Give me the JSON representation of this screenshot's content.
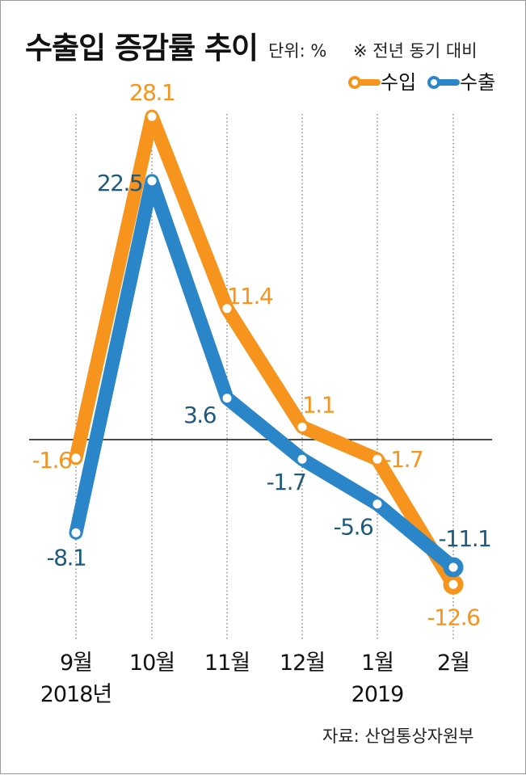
{
  "header": {
    "title": "수출입 증감률 추이",
    "unit": "단위: %",
    "note": "※ 전년 동기 대비"
  },
  "footer": {
    "source": "자료: 산업통상자원부"
  },
  "colors": {
    "import": "#f7941d",
    "export": "#2b86c9",
    "import_label": "#f7941d",
    "export_label": "#1f5a7e"
  },
  "chart_data": {
    "type": "line",
    "title": "수출입 증감률 추이",
    "categories": [
      "9월",
      "10월",
      "11월",
      "12월",
      "1월",
      "2월"
    ],
    "year_labels": [
      "2018년",
      "",
      "",
      "",
      "2019",
      ""
    ],
    "series": [
      {
        "name": "수입",
        "values": [
          -1.6,
          28.1,
          11.4,
          1.1,
          -1.7,
          -12.6
        ],
        "labels": [
          "-1.6",
          "28.1",
          "11.4",
          "1.1",
          "-1.7",
          "-12.6"
        ]
      },
      {
        "name": "수출",
        "values": [
          -8.1,
          22.5,
          3.6,
          -1.7,
          -5.6,
          -11.1
        ],
        "labels": [
          "-8.1",
          "22.5",
          "3.6",
          "-1.7",
          "-5.6",
          "-11.1"
        ]
      }
    ],
    "ylim": [
      -14,
      30
    ],
    "baseline": 0,
    "legend_position": "top-right",
    "grid": false
  }
}
